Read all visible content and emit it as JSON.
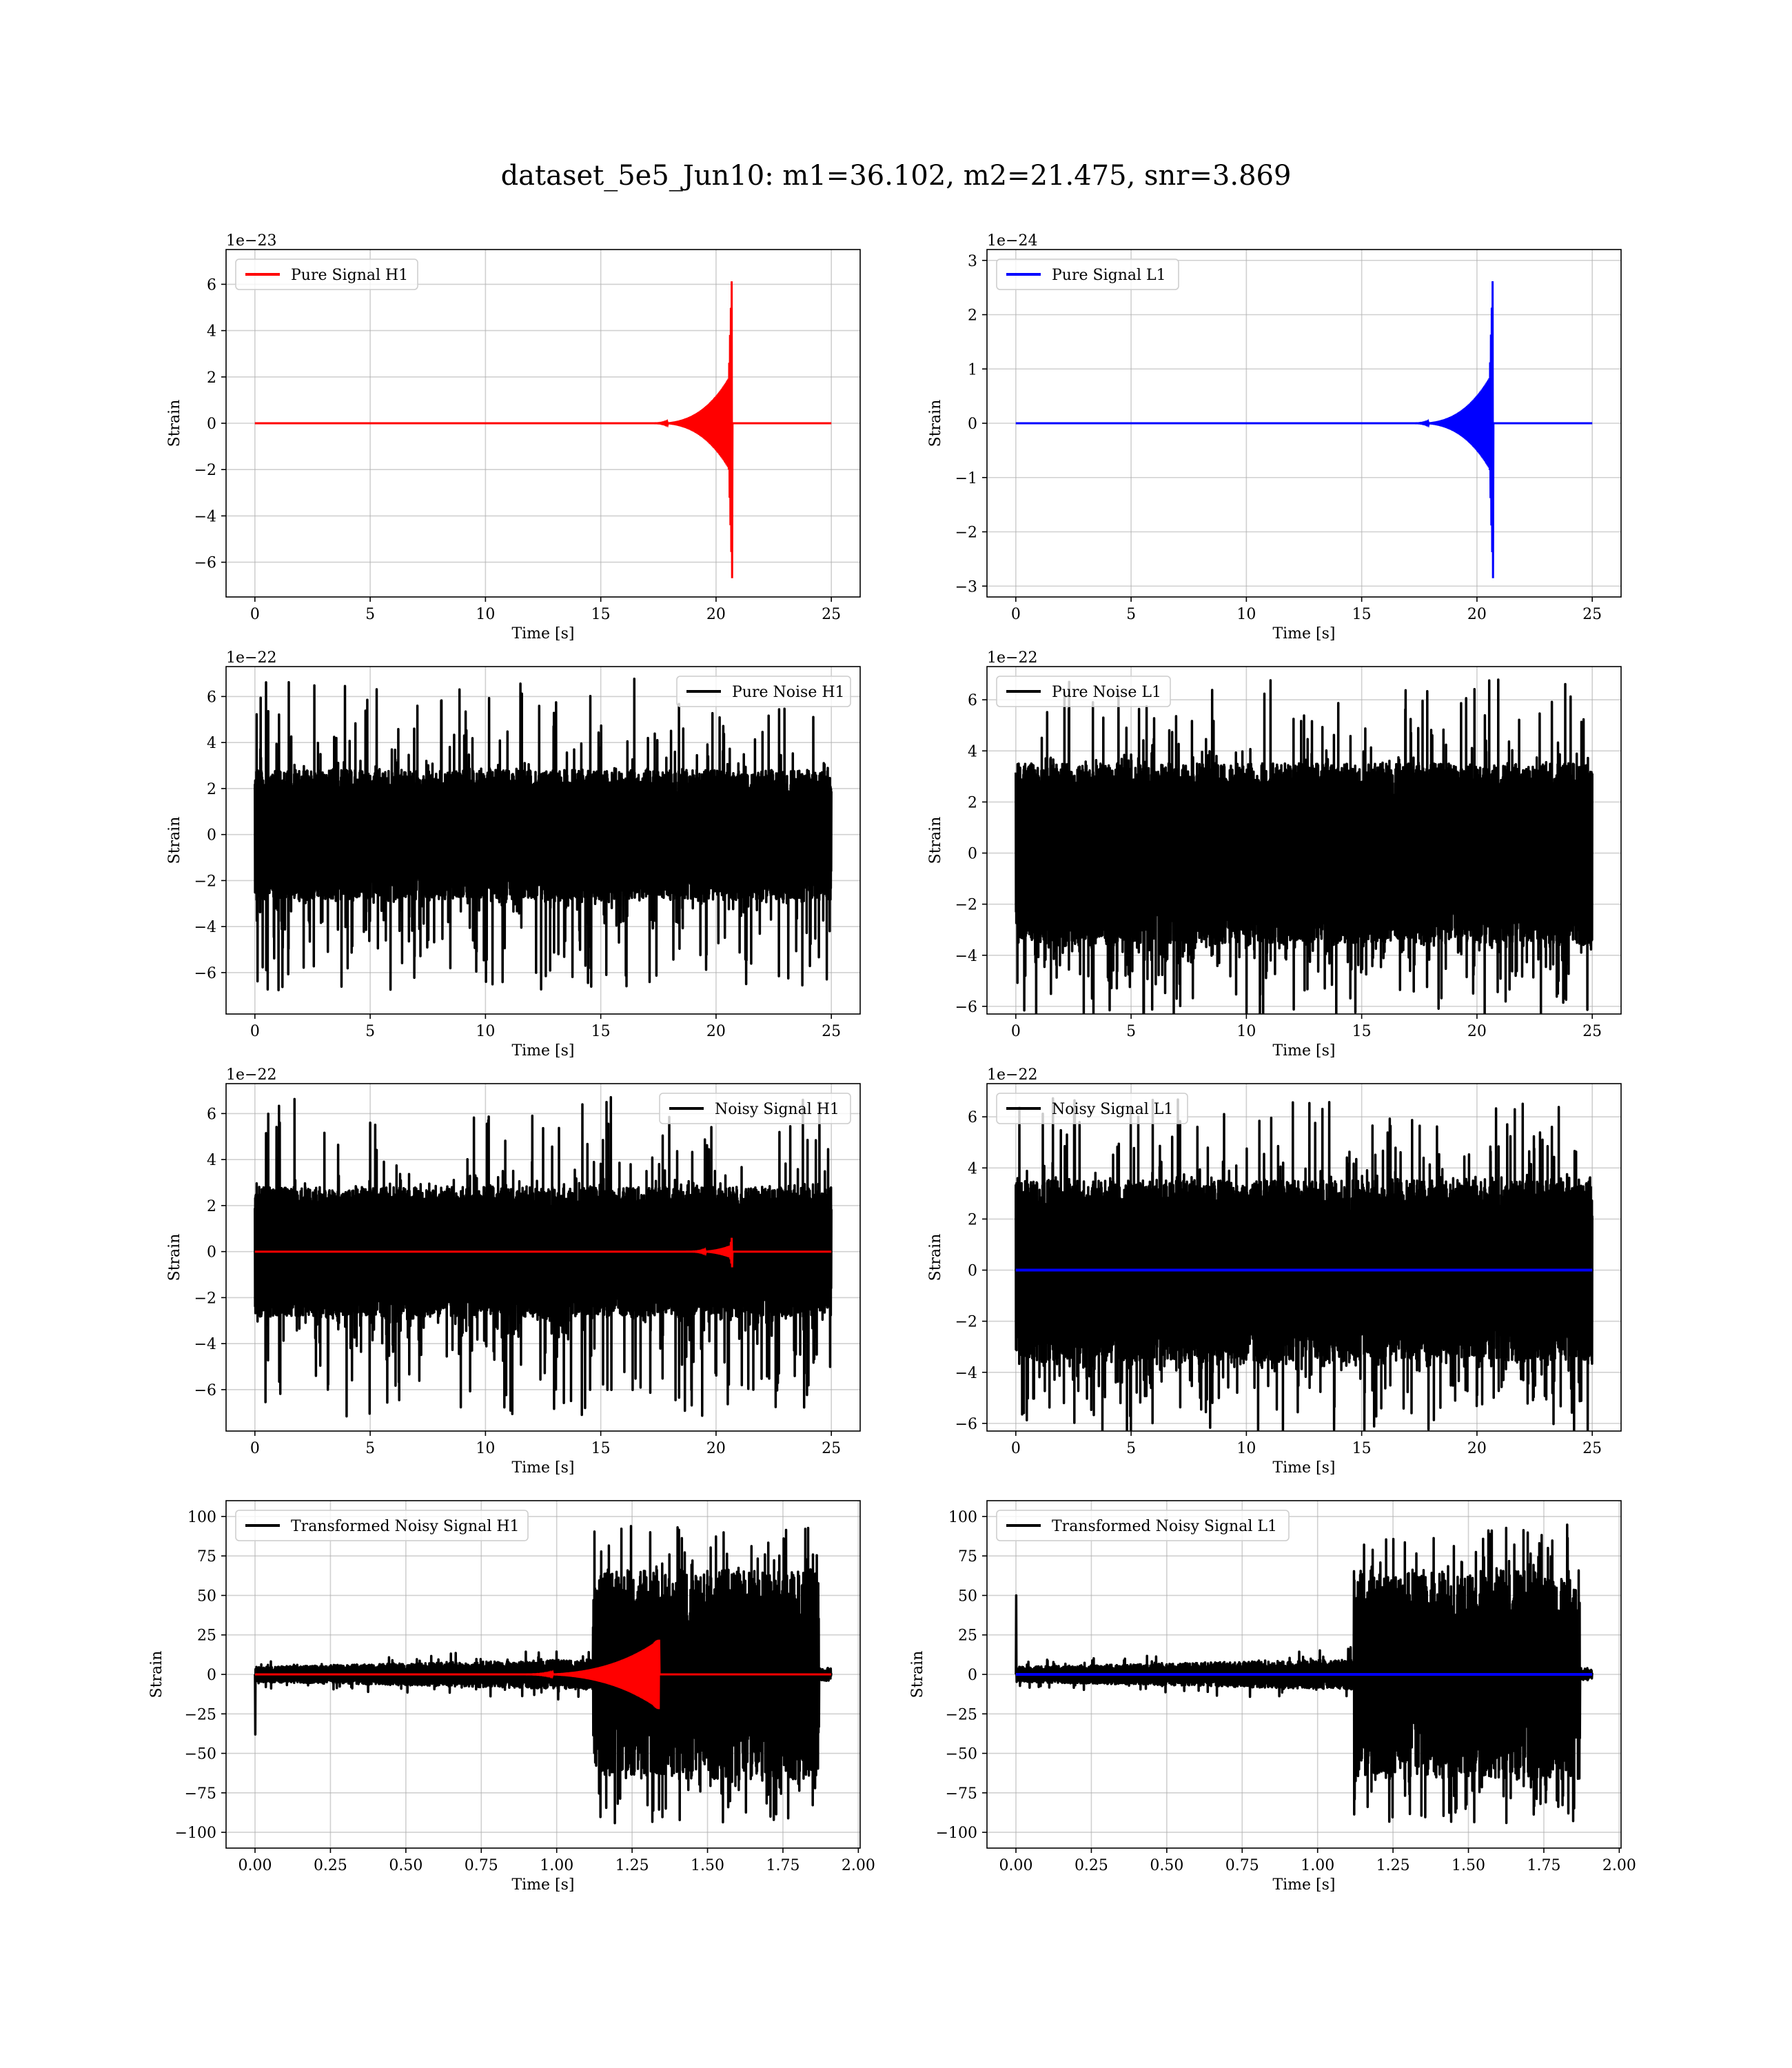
{
  "figure": {
    "title": "dataset_5e5_Jun10: m1=36.102, m2=21.475, snr=3.869"
  },
  "chart_data": [
    {
      "id": "pure-signal-h1",
      "type": "line",
      "xlabel": "Time [s]",
      "ylabel": "Strain",
      "offset_text": "1e−23",
      "xlim": [
        -1.25,
        26.25
      ],
      "ylim": [
        -7.5,
        7.5
      ],
      "xticks": [
        0,
        5,
        10,
        15,
        20,
        25
      ],
      "yticks": [
        -6,
        -4,
        -2,
        0,
        2,
        4,
        6
      ],
      "grid": true,
      "legend_loc": "upper left",
      "series": [
        {
          "name": "Pure Signal H1",
          "color": "#ff0000",
          "kind": "chirp",
          "x_range": [
            0,
            25
          ],
          "amplitude": 6.8,
          "merger_time": 20.7,
          "chirp_start": 17.0,
          "pre_merger_amplitude": 2.2
        }
      ]
    },
    {
      "id": "pure-signal-l1",
      "type": "line",
      "xlabel": "Time [s]",
      "ylabel": "Strain",
      "offset_text": "1e−24",
      "xlim": [
        -1.25,
        26.25
      ],
      "ylim": [
        -3.2,
        3.2
      ],
      "xticks": [
        0,
        5,
        10,
        15,
        20,
        25
      ],
      "yticks": [
        -3,
        -2,
        -1,
        0,
        1,
        2,
        3
      ],
      "grid": true,
      "legend_loc": "upper left",
      "series": [
        {
          "name": "Pure Signal L1",
          "color": "#0000ff",
          "kind": "chirp",
          "x_range": [
            0,
            25
          ],
          "amplitude": 2.9,
          "merger_time": 20.7,
          "chirp_start": 17.0,
          "pre_merger_amplitude": 0.95
        }
      ]
    },
    {
      "id": "pure-noise-h1",
      "type": "line",
      "xlabel": "Time [s]",
      "ylabel": "Strain",
      "offset_text": "1e−22",
      "xlim": [
        -1.25,
        26.25
      ],
      "ylim": [
        -7.8,
        7.3
      ],
      "xticks": [
        0,
        5,
        10,
        15,
        20,
        25
      ],
      "yticks": [
        -6,
        -4,
        -2,
        0,
        2,
        4,
        6
      ],
      "grid": true,
      "legend_loc": "upper right",
      "series": [
        {
          "name": "Pure Noise H1",
          "color": "#000000",
          "kind": "noise",
          "x_range": [
            0,
            25
          ],
          "core_amplitude": 2.8,
          "spike_max": 6.8,
          "spike_min": -7.2
        }
      ]
    },
    {
      "id": "pure-noise-l1",
      "type": "line",
      "xlabel": "Time [s]",
      "ylabel": "Strain",
      "offset_text": "1e−22",
      "xlim": [
        -1.25,
        26.25
      ],
      "ylim": [
        -6.3,
        7.3
      ],
      "xticks": [
        0,
        5,
        10,
        15,
        20,
        25
      ],
      "yticks": [
        -6,
        -4,
        -2,
        0,
        2,
        4,
        6
      ],
      "grid": true,
      "legend_loc": "upper left",
      "series": [
        {
          "name": "Pure Noise L1",
          "color": "#000000",
          "kind": "noise",
          "x_range": [
            0,
            25
          ],
          "core_amplitude": 3.5,
          "spike_max": 6.8,
          "spike_min": -5.7
        }
      ]
    },
    {
      "id": "noisy-signal-h1",
      "type": "line",
      "xlabel": "Time [s]",
      "ylabel": "Strain",
      "offset_text": "1e−22",
      "xlim": [
        -1.25,
        26.25
      ],
      "ylim": [
        -7.8,
        7.3
      ],
      "xticks": [
        0,
        5,
        10,
        15,
        20,
        25
      ],
      "yticks": [
        -6,
        -4,
        -2,
        0,
        2,
        4,
        6
      ],
      "grid": true,
      "legend_loc": "upper right",
      "series": [
        {
          "name": "Noisy Signal H1",
          "color": "#000000",
          "kind": "noise",
          "x_range": [
            0,
            25
          ],
          "core_amplitude": 2.8,
          "spike_max": 6.8,
          "spike_min": -7.2
        },
        {
          "name": "",
          "color": "#ff0000",
          "kind": "chirp",
          "x_range": [
            0,
            25
          ],
          "amplitude": 0.7,
          "merger_time": 20.7,
          "chirp_start": 18.5,
          "pre_merger_amplitude": 0.3
        }
      ]
    },
    {
      "id": "noisy-signal-l1",
      "type": "line",
      "xlabel": "Time [s]",
      "ylabel": "Strain",
      "offset_text": "1e−22",
      "xlim": [
        -1.25,
        26.25
      ],
      "ylim": [
        -6.3,
        7.3
      ],
      "xticks": [
        0,
        5,
        10,
        15,
        20,
        25
      ],
      "yticks": [
        -6,
        -4,
        -2,
        0,
        2,
        4,
        6
      ],
      "grid": true,
      "legend_loc": "upper left",
      "series": [
        {
          "name": "Noisy Signal L1",
          "color": "#000000",
          "kind": "noise",
          "x_range": [
            0,
            25
          ],
          "core_amplitude": 3.5,
          "spike_max": 6.8,
          "spike_min": -5.7
        },
        {
          "name": "",
          "color": "#0000ff",
          "kind": "flat",
          "x_range": [
            0,
            25
          ],
          "value": 0
        }
      ]
    },
    {
      "id": "transformed-noisy-signal-h1",
      "type": "line",
      "xlabel": "Time [s]",
      "ylabel": "Strain",
      "offset_text": "",
      "xlim": [
        -0.096,
        2.006
      ],
      "ylim": [
        -110,
        110
      ],
      "xticks": [
        0.0,
        0.25,
        0.5,
        0.75,
        1.0,
        1.25,
        1.5,
        1.75,
        2.0
      ],
      "xtick_labels": [
        "0.00",
        "0.25",
        "0.50",
        "0.75",
        "1.00",
        "1.25",
        "1.50",
        "1.75",
        "2.00"
      ],
      "yticks": [
        -100,
        -75,
        -50,
        -25,
        0,
        25,
        50,
        75,
        100
      ],
      "grid": true,
      "legend_loc": "upper left",
      "series": [
        {
          "name": "Transformed Noisy Signal H1",
          "color": "#000000",
          "kind": "transformed",
          "x_range": [
            0,
            1.91
          ],
          "start_spike": -38,
          "low_amplitude": 8,
          "high_start": 1.12,
          "high_end": 1.87,
          "high_amplitude": 95
        },
        {
          "name": "",
          "color": "#ff0000",
          "kind": "chirp",
          "x_range": [
            0,
            1.91
          ],
          "amplitude": 22,
          "merger_time": 1.34,
          "chirp_start": 0.85,
          "pre_merger_amplitude": 22
        }
      ]
    },
    {
      "id": "transformed-noisy-signal-l1",
      "type": "line",
      "xlabel": "Time [s]",
      "ylabel": "Strain",
      "offset_text": "",
      "xlim": [
        -0.096,
        2.006
      ],
      "ylim": [
        -110,
        110
      ],
      "xticks": [
        0.0,
        0.25,
        0.5,
        0.75,
        1.0,
        1.25,
        1.5,
        1.75,
        2.0
      ],
      "xtick_labels": [
        "0.00",
        "0.25",
        "0.50",
        "0.75",
        "1.00",
        "1.25",
        "1.50",
        "1.75",
        "2.00"
      ],
      "yticks": [
        -100,
        -75,
        -50,
        -25,
        0,
        25,
        50,
        75,
        100
      ],
      "grid": true,
      "legend_loc": "upper left",
      "series": [
        {
          "name": "Transformed Noisy Signal L1",
          "color": "#000000",
          "kind": "transformed",
          "x_range": [
            0,
            1.91
          ],
          "start_spike": 50,
          "low_amplitude": 8,
          "high_start": 1.12,
          "high_end": 1.87,
          "high_amplitude": 95
        },
        {
          "name": "",
          "color": "#0000ff",
          "kind": "flat",
          "x_range": [
            0,
            1.91
          ],
          "value": 0
        }
      ]
    }
  ]
}
